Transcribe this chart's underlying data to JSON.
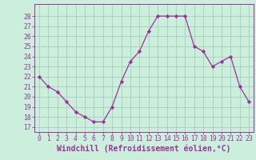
{
  "hours": [
    0,
    1,
    2,
    3,
    4,
    5,
    6,
    7,
    8,
    9,
    10,
    11,
    12,
    13,
    14,
    15,
    16,
    17,
    18,
    19,
    20,
    21,
    22,
    23
  ],
  "values": [
    22,
    21,
    20.5,
    19.5,
    18.5,
    18,
    17.5,
    17.5,
    19,
    21.5,
    23.5,
    24.5,
    26.5,
    28,
    28,
    28,
    28,
    25,
    24.5,
    23,
    23.5,
    24,
    21,
    19.5
  ],
  "line_color": "#993399",
  "marker": "D",
  "marker_size": 2.2,
  "bg_color": "#cceedd",
  "grid_color": "#aaccbb",
  "xlabel": "Windchill (Refroidissement éolien,°C)",
  "ylim": [
    16.5,
    29.2
  ],
  "yticks": [
    17,
    18,
    19,
    20,
    21,
    22,
    23,
    24,
    25,
    26,
    27,
    28
  ],
  "xticks": [
    0,
    1,
    2,
    3,
    4,
    5,
    6,
    7,
    8,
    9,
    10,
    11,
    12,
    13,
    14,
    15,
    16,
    17,
    18,
    19,
    20,
    21,
    22,
    23
  ],
  "tick_label_fontsize": 5.8,
  "xlabel_fontsize": 7.0
}
